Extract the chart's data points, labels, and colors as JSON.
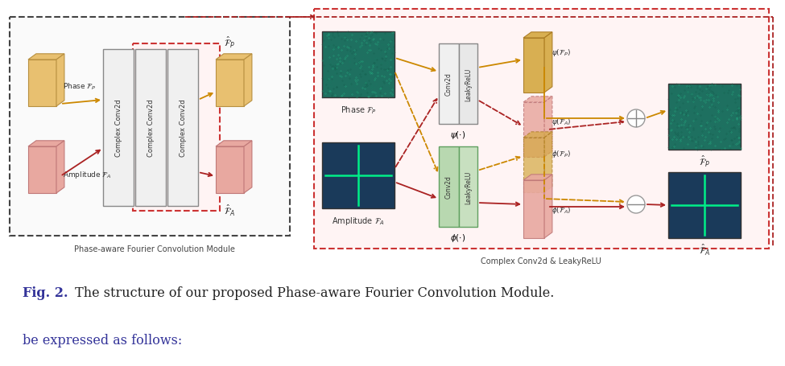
{
  "fig_caption": "Fig. 2.",
  "fig_text": " The structure of our proposed Phase-aware Fourier Convolution Module.",
  "sub_text": "be expressed as follows:",
  "label_left": "Phase-aware Fourier Convolution Module",
  "label_right": "Complex Conv2d & LeakyReLU",
  "bg_color": "#ffffff",
  "gold_slab": "#d4aa50",
  "gold_slab_edge": "#b88a20",
  "gold_slab_light": "#e8c878",
  "pink_slab": "#e0a0a0",
  "pink_slab_edge": "#c07070",
  "pink_slab_light": "#ecc0b0",
  "teal_dark": "#1e7a70",
  "teal_light": "#2aa090",
  "blue_dark": "#1a4a6a",
  "orange_arrow": "#cc8800",
  "red_arrow": "#aa2222",
  "green_conv": "#b8d8b0",
  "green_conv_edge": "#60a060",
  "white_conv": "#f5f5f5",
  "white_conv_edge": "#888888"
}
